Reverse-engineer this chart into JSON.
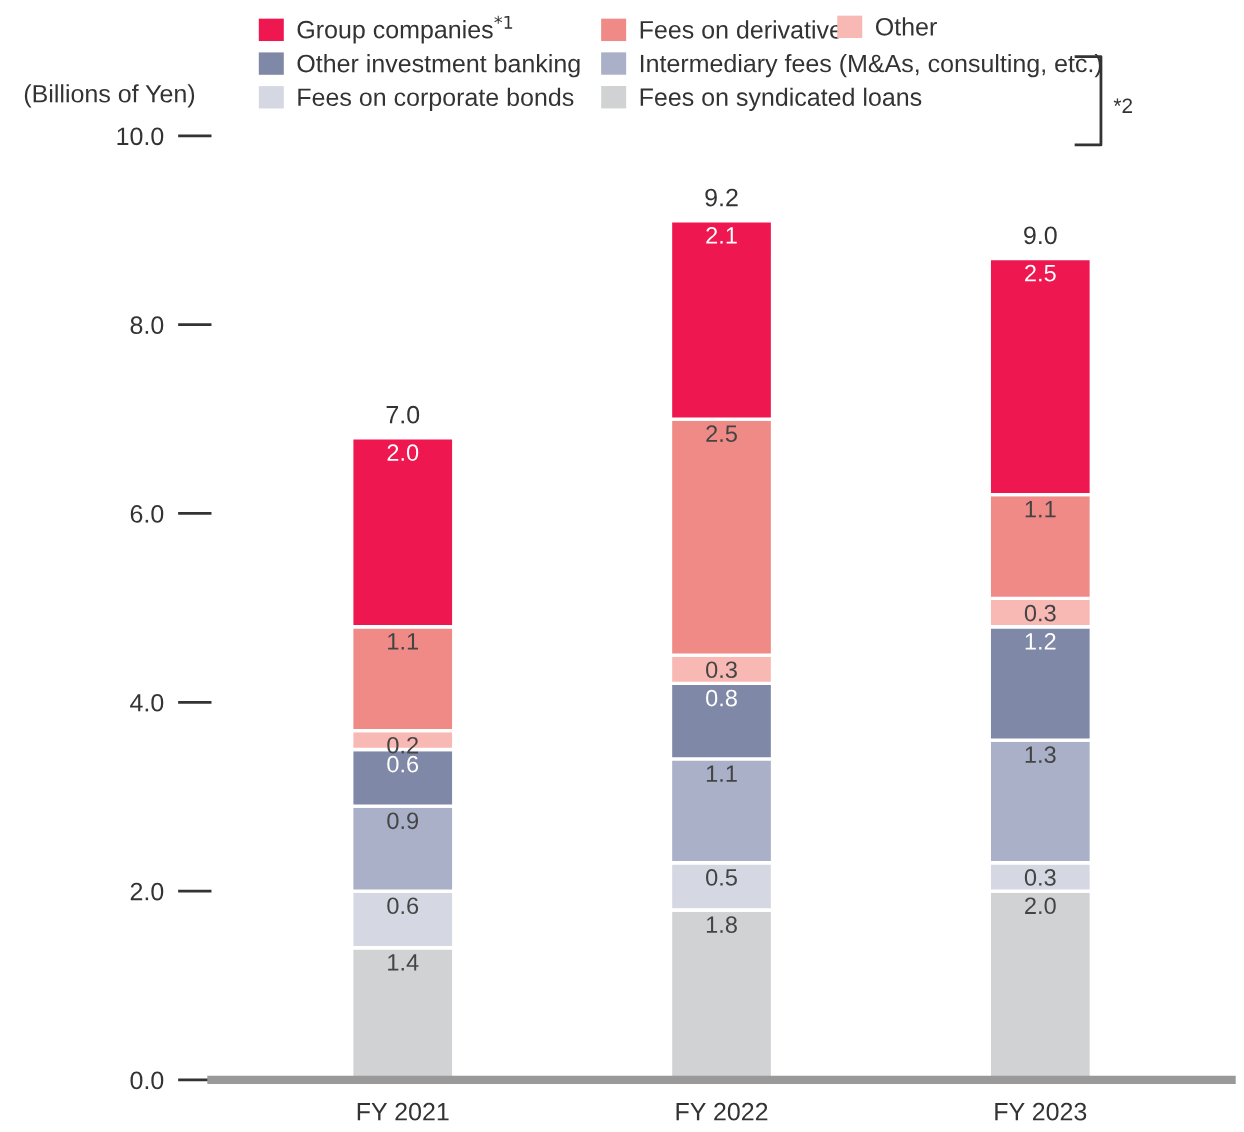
{
  "chart_data": {
    "type": "bar",
    "stacked": true,
    "ylabel": "(Billions of Yen)",
    "categories": [
      "FY 2021",
      "FY 2022",
      "FY 2023"
    ],
    "series": [
      {
        "name": "Fees on syndicated loans",
        "color": "#d1d2d4",
        "values": [
          1.4,
          1.8,
          2.0
        ],
        "value_labels": [
          "1.4",
          "1.8",
          "2.0"
        ]
      },
      {
        "name": "Fees on corporate bonds",
        "color": "#d5d8e3",
        "values": [
          0.6,
          0.5,
          0.3
        ],
        "value_labels": [
          "0.6",
          "0.5",
          "0.3"
        ]
      },
      {
        "name": "Intermediary fees (M&As, consulting, etc.)",
        "color": "#a9b0c7",
        "values": [
          0.9,
          1.1,
          1.3
        ],
        "value_labels": [
          "0.9",
          "1.1",
          "1.3"
        ]
      },
      {
        "name": "Other investment banking",
        "color": "#7f88a6",
        "values": [
          0.6,
          0.8,
          1.2
        ],
        "value_labels": [
          "0.6",
          "0.8",
          "1.2"
        ]
      },
      {
        "name": "Other",
        "color": "#f8b9b4",
        "values": [
          0.2,
          0.3,
          0.3
        ],
        "value_labels": [
          "0.2",
          "0.3",
          "0.3"
        ]
      },
      {
        "name": "Fees on derivative",
        "color": "#f08a86",
        "values": [
          1.1,
          2.5,
          1.1
        ],
        "value_labels": [
          "1.1",
          "2.5",
          "1.1"
        ]
      },
      {
        "name": "Group companies$^{*1}$",
        "color": "#ee1750",
        "values": [
          2.0,
          2.1,
          2.5
        ],
        "value_labels": [
          "2.0",
          "2.1",
          "2.5"
        ]
      }
    ],
    "totals": [
      "7.0",
      "9.2",
      "9.0"
    ],
    "ylim": [
      0,
      10
    ],
    "yticks": [
      {
        "value": 0,
        "label": "0.0"
      },
      {
        "value": 2,
        "label": "2.0"
      },
      {
        "value": 4,
        "label": "4.0"
      },
      {
        "value": 6,
        "label": "6.0"
      },
      {
        "value": 8,
        "label": "8.0"
      },
      {
        "value": 10,
        "label": "10.0"
      }
    ],
    "grid": false,
    "legend": "top",
    "annotations": [
      "*2"
    ]
  }
}
